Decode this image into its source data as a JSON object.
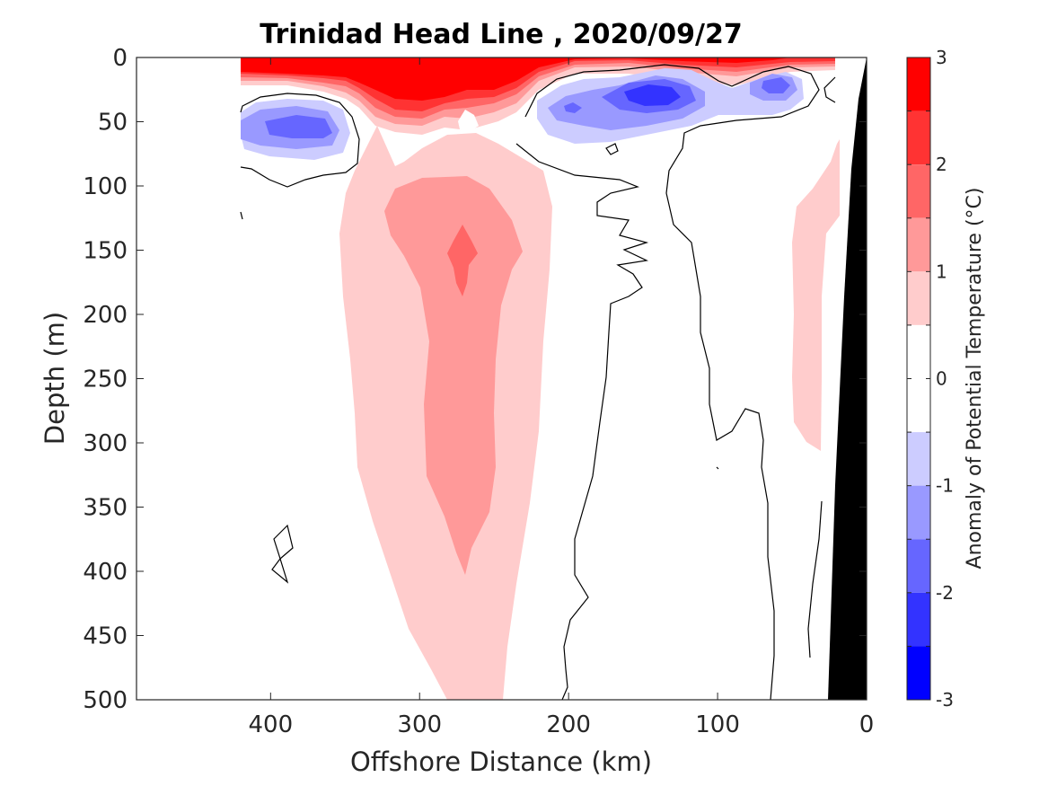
{
  "chart_data": {
    "type": "contour",
    "title": "Trinidad Head Line , 2020/09/27",
    "xlabel": "Offshore Distance (km)",
    "ylabel": "Depth (m)",
    "colorbar_label": "Anomaly of Potential Temperature (°C)",
    "xlim": [
      490,
      0
    ],
    "ylim": [
      0,
      500
    ],
    "x_reversed": true,
    "y_reversed": true,
    "xticks": [
      400,
      300,
      200,
      100,
      0
    ],
    "yticks": [
      0,
      50,
      100,
      150,
      200,
      250,
      300,
      350,
      400,
      450,
      500
    ],
    "xtick_labels": [
      "400",
      "300",
      "200",
      "100",
      "0"
    ],
    "ytick_labels": [
      "0",
      "50",
      "100",
      "150",
      "200",
      "250",
      "300",
      "350",
      "400",
      "450",
      "500"
    ],
    "colorbar_ticks": [
      "3",
      "2",
      "1",
      "0",
      "-1",
      "-2",
      "-3"
    ],
    "colorbar_levels": [
      {
        "from": 2.5,
        "to": 3.0,
        "color": "#ff0000"
      },
      {
        "from": 2.0,
        "to": 2.5,
        "color": "#ff3333"
      },
      {
        "from": 1.5,
        "to": 2.0,
        "color": "#ff6666"
      },
      {
        "from": 1.0,
        "to": 1.5,
        "color": "#ff9999"
      },
      {
        "from": 0.5,
        "to": 1.0,
        "color": "#ffcccc"
      },
      {
        "from": -0.5,
        "to": 0.5,
        "color": "#ffffff"
      },
      {
        "from": -1.0,
        "to": -0.5,
        "color": "#ccccff"
      },
      {
        "from": -1.5,
        "to": -1.0,
        "color": "#9999ff"
      },
      {
        "from": -2.0,
        "to": -1.5,
        "color": "#6666ff"
      },
      {
        "from": -2.5,
        "to": -2.0,
        "color": "#3333ff"
      },
      {
        "from": -3.0,
        "to": -2.5,
        "color": "#0000ff"
      }
    ],
    "features": [
      {
        "name": "warm surface layer",
        "anomaly_min": 2.5,
        "x_range_km": [
          420,
          80
        ],
        "depth_range_m": [
          0,
          40
        ]
      },
      {
        "name": "subsurface warm core",
        "anomaly_peak": 1.75,
        "center_km": 270,
        "depth_range_m": [
          130,
          185
        ]
      },
      {
        "name": "warm tongue",
        "anomaly_range": [
          0.5,
          1.5
        ],
        "x_range_km": [
          350,
          210
        ],
        "depth_range_m": [
          50,
          500
        ]
      },
      {
        "name": "offshore cold eddy",
        "anomaly_min": -2.0,
        "center_km": 385,
        "depth_range_m": [
          40,
          80
        ]
      },
      {
        "name": "nearshore cold band",
        "anomaly_min": -2.5,
        "x_range_km": [
          260,
          50
        ],
        "depth_range_m": [
          10,
          65
        ]
      },
      {
        "name": "nearshore warm strip",
        "anomaly_range": [
          0.5,
          1.0
        ],
        "x_range_km": [
          55,
          35
        ],
        "depth_range_m": [
          90,
          305
        ]
      }
    ],
    "land_mask_color": "#000000",
    "grid": false
  }
}
